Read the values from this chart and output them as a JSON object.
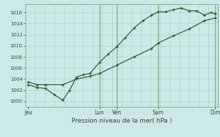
{
  "xlabel": "Pression niveau de la mer( hPa )",
  "bg_color": "#cce8e8",
  "line_color": "#2d5a2d",
  "grid_color_minor": "#aaccbb",
  "grid_color_major": "#88aa88",
  "ylim": [
    999,
    1017.5
  ],
  "yticks": [
    1000,
    1002,
    1004,
    1006,
    1008,
    1010,
    1012,
    1014,
    1016
  ],
  "xlim": [
    0,
    10
  ],
  "xtick_labels": [
    "Jeu",
    "Lun",
    "Ven",
    "Sam",
    "Dim"
  ],
  "xtick_positions": [
    0.15,
    3.85,
    4.75,
    6.9,
    9.85
  ],
  "vline_positions": [
    3.85,
    4.75,
    6.9,
    9.85
  ],
  "line1_x": [
    0.15,
    0.6,
    1.05,
    1.5,
    1.95,
    2.3,
    2.65,
    3.0,
    3.35,
    3.85,
    4.3,
    4.75,
    5.2,
    5.65,
    6.1,
    6.55,
    6.9,
    7.3,
    7.7,
    8.1,
    8.5,
    8.9,
    9.3,
    9.65,
    9.85
  ],
  "line1_y": [
    1003,
    1002.5,
    1002.3,
    1001.2,
    1000.2,
    1002.0,
    1004.3,
    1004.8,
    1005.0,
    1007.0,
    1008.5,
    1009.8,
    1011.5,
    1013.2,
    1014.5,
    1015.5,
    1016.1,
    1016.1,
    1016.5,
    1016.8,
    1016.3,
    1016.3,
    1015.5,
    1016.0,
    1015.8
  ],
  "line2_x": [
    0.15,
    0.6,
    1.05,
    1.95,
    2.65,
    3.35,
    3.85,
    4.75,
    5.65,
    6.55,
    6.9,
    7.7,
    8.5,
    9.3,
    9.85
  ],
  "line2_y": [
    1003.5,
    1003.0,
    1003.0,
    1003.0,
    1004.0,
    1004.5,
    1005.0,
    1006.5,
    1008.0,
    1009.5,
    1010.5,
    1011.8,
    1013.0,
    1014.5,
    1015.0
  ],
  "figsize": [
    3.2,
    2.0
  ],
  "dpi": 100
}
